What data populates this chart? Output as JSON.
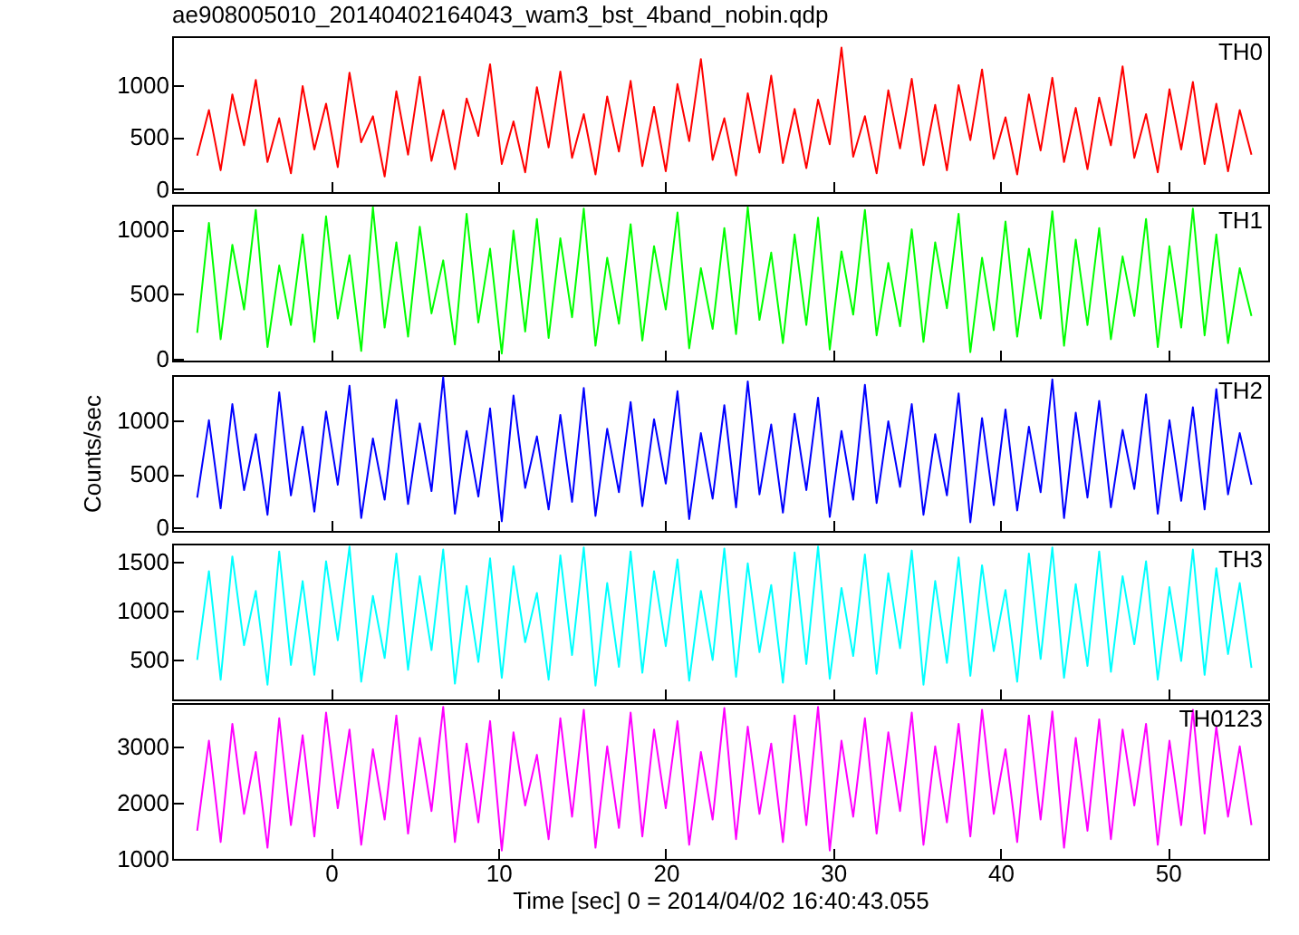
{
  "chart_data": [
    {
      "type": "line",
      "title": "ae908005010_20140402164043_wam3_bst_4band_nobin.qdp",
      "xlim": [
        -9.5,
        56
      ],
      "xticks": [
        0,
        10,
        20,
        30,
        40,
        50
      ],
      "ylim": [
        -30,
        1470
      ],
      "yticks": [
        0,
        500,
        1000
      ],
      "tick_labels": "y",
      "grid": false,
      "legend": false,
      "x": [
        -8,
        -7.3,
        -6.6,
        -5.9,
        -5.2,
        -4.5,
        -3.8,
        -3.1,
        -2.4,
        -1.7,
        -1,
        -0.3,
        0.4,
        1.1,
        1.8,
        2.5,
        3.2,
        3.9,
        4.6,
        5.3,
        6,
        6.7,
        7.4,
        8.1,
        8.8,
        9.5,
        10.2,
        10.9,
        11.6,
        12.3,
        13,
        13.7,
        14.4,
        15.1,
        15.8,
        16.5,
        17.2,
        17.9,
        18.6,
        19.3,
        20,
        20.7,
        21.4,
        22.1,
        22.8,
        23.5,
        24.2,
        24.9,
        25.6,
        26.3,
        27,
        27.7,
        28.4,
        29.1,
        29.8,
        30.5,
        31.2,
        31.9,
        32.6,
        33.3,
        34,
        34.7,
        35.4,
        36.1,
        36.8,
        37.5,
        38.2,
        38.9,
        39.6,
        40.3,
        41,
        41.7,
        42.4,
        43.1,
        43.8,
        44.5,
        45.2,
        45.9,
        46.6,
        47.3,
        48,
        48.7,
        49.4,
        50.1,
        50.8,
        51.5,
        52.2,
        52.9,
        53.6,
        54.3,
        55
      ],
      "series": [
        {
          "name": "TH0",
          "color": "#ff0000",
          "values": [
            320,
            760,
            180,
            910,
            420,
            1050,
            260,
            680,
            150,
            990,
            380,
            820,
            210,
            1120,
            450,
            700,
            120,
            940,
            330,
            1080,
            270,
            760,
            190,
            870,
            510,
            1200,
            240,
            650,
            160,
            980,
            400,
            1130,
            300,
            720,
            140,
            890,
            360,
            1040,
            220,
            790,
            170,
            1010,
            460,
            1250,
            280,
            680,
            130,
            920,
            350,
            1090,
            250,
            770,
            200,
            860,
            430,
            1360,
            310,
            700,
            150,
            950,
            390,
            1060,
            230,
            810,
            180,
            1000,
            470,
            1150,
            290,
            690,
            140,
            910,
            370,
            1070,
            260,
            780,
            190,
            880,
            420,
            1180,
            300,
            720,
            160,
            960,
            380,
            1030,
            240,
            820,
            170,
            760,
            330
          ]
        }
      ]
    },
    {
      "type": "line",
      "xlim": [
        -9.5,
        56
      ],
      "xticks": [
        0,
        10,
        20,
        30,
        40,
        50
      ],
      "ylim": [
        -15,
        1190
      ],
      "yticks": [
        0,
        500,
        1000
      ],
      "tick_labels": "y",
      "grid": false,
      "legend": false,
      "x": [
        -8,
        -7.3,
        -6.6,
        -5.9,
        -5.2,
        -4.5,
        -3.8,
        -3.1,
        -2.4,
        -1.7,
        -1,
        -0.3,
        0.4,
        1.1,
        1.8,
        2.5,
        3.2,
        3.9,
        4.6,
        5.3,
        6,
        6.7,
        7.4,
        8.1,
        8.8,
        9.5,
        10.2,
        10.9,
        11.6,
        12.3,
        13,
        13.7,
        14.4,
        15.1,
        15.8,
        16.5,
        17.2,
        17.9,
        18.6,
        19.3,
        20,
        20.7,
        21.4,
        22.1,
        22.8,
        23.5,
        24.2,
        24.9,
        25.6,
        26.3,
        27,
        27.7,
        28.4,
        29.1,
        29.8,
        30.5,
        31.2,
        31.9,
        32.6,
        33.3,
        34,
        34.7,
        35.4,
        36.1,
        36.8,
        37.5,
        38.2,
        38.9,
        39.6,
        40.3,
        41,
        41.7,
        42.4,
        43.1,
        43.8,
        44.5,
        45.2,
        45.9,
        46.6,
        47.3,
        48,
        48.7,
        49.4,
        50.1,
        50.8,
        51.5,
        52.2,
        52.9,
        53.6,
        54.3,
        55
      ],
      "series": [
        {
          "name": "TH1",
          "color": "#00ff00",
          "values": [
            200,
            1050,
            150,
            880,
            380,
            1150,
            90,
            720,
            260,
            960,
            130,
            1100,
            310,
            800,
            60,
            1170,
            240,
            900,
            170,
            1020,
            350,
            760,
            110,
            1120,
            280,
            850,
            40,
            990,
            210,
            1080,
            160,
            930,
            320,
            1160,
            100,
            780,
            270,
            1040,
            140,
            870,
            380,
            1130,
            80,
            700,
            230,
            1010,
            190,
            1170,
            300,
            820,
            120,
            960,
            260,
            1090,
            70,
            830,
            340,
            1150,
            180,
            740,
            250,
            1000,
            130,
            900,
            390,
            1120,
            50,
            780,
            220,
            1060,
            170,
            850,
            310,
            1140,
            100,
            920,
            260,
            1010,
            150,
            790,
            330,
            1080,
            90,
            870,
            240,
            1160,
            180,
            960,
            120,
            700,
            330
          ]
        }
      ]
    },
    {
      "type": "line",
      "ylabel": "Counts/sec",
      "xlim": [
        -9.5,
        56
      ],
      "xticks": [
        0,
        10,
        20,
        30,
        40,
        50
      ],
      "ylim": [
        -30,
        1420
      ],
      "yticks": [
        0,
        500,
        1000
      ],
      "tick_labels": "y",
      "grid": false,
      "legend": false,
      "x": [
        -8,
        -7.3,
        -6.6,
        -5.9,
        -5.2,
        -4.5,
        -3.8,
        -3.1,
        -2.4,
        -1.7,
        -1,
        -0.3,
        0.4,
        1.1,
        1.8,
        2.5,
        3.2,
        3.9,
        4.6,
        5.3,
        6,
        6.7,
        7.4,
        8.1,
        8.8,
        9.5,
        10.2,
        10.9,
        11.6,
        12.3,
        13,
        13.7,
        14.4,
        15.1,
        15.8,
        16.5,
        17.2,
        17.9,
        18.6,
        19.3,
        20,
        20.7,
        21.4,
        22.1,
        22.8,
        23.5,
        24.2,
        24.9,
        25.6,
        26.3,
        27,
        27.7,
        28.4,
        29.1,
        29.8,
        30.5,
        31.2,
        31.9,
        32.6,
        33.3,
        34,
        34.7,
        35.4,
        36.1,
        36.8,
        37.5,
        38.2,
        38.9,
        39.6,
        40.3,
        41,
        41.7,
        42.4,
        43.1,
        43.8,
        44.5,
        45.2,
        45.9,
        46.6,
        47.3,
        48,
        48.7,
        49.4,
        50.1,
        50.8,
        51.5,
        52.2,
        52.9,
        53.6,
        54.3,
        55
      ],
      "series": [
        {
          "name": "TH2",
          "color": "#0000ff",
          "values": [
            280,
            1000,
            180,
            1150,
            350,
            870,
            120,
            1260,
            300,
            940,
            150,
            1080,
            400,
            1320,
            90,
            830,
            260,
            1190,
            220,
            970,
            340,
            1400,
            130,
            900,
            290,
            1110,
            60,
            1230,
            370,
            850,
            170,
            1050,
            240,
            1300,
            110,
            920,
            330,
            1170,
            200,
            1010,
            410,
            1270,
            80,
            880,
            270,
            1140,
            190,
            1360,
            310,
            960,
            140,
            1060,
            350,
            1210,
            100,
            900,
            260,
            1330,
            230,
            990,
            380,
            1150,
            120,
            870,
            300,
            1250,
            50,
            1020,
            210,
            1100,
            160,
            940,
            330,
            1380,
            90,
            1070,
            280,
            1180,
            190,
            910,
            360,
            1240,
            130,
            1000,
            250,
            1120,
            170,
            1290,
            310,
            880,
            400
          ]
        }
      ]
    },
    {
      "type": "line",
      "xlim": [
        -9.5,
        56
      ],
      "xticks": [
        0,
        10,
        20,
        30,
        40,
        50
      ],
      "ylim": [
        100,
        1680
      ],
      "yticks": [
        500,
        1000,
        1500
      ],
      "tick_labels": "y",
      "grid": false,
      "legend": false,
      "x": [
        -8,
        -7.3,
        -6.6,
        -5.9,
        -5.2,
        -4.5,
        -3.8,
        -3.1,
        -2.4,
        -1.7,
        -1,
        -0.3,
        0.4,
        1.1,
        1.8,
        2.5,
        3.2,
        3.9,
        4.6,
        5.3,
        6,
        6.7,
        7.4,
        8.1,
        8.8,
        9.5,
        10.2,
        10.9,
        11.6,
        12.3,
        13,
        13.7,
        14.4,
        15.1,
        15.8,
        16.5,
        17.2,
        17.9,
        18.6,
        19.3,
        20,
        20.7,
        21.4,
        22.1,
        22.8,
        23.5,
        24.2,
        24.9,
        25.6,
        26.3,
        27,
        27.7,
        28.4,
        29.1,
        29.8,
        30.5,
        31.2,
        31.9,
        32.6,
        33.3,
        34,
        34.7,
        35.4,
        36.1,
        36.8,
        37.5,
        38.2,
        38.9,
        39.6,
        40.3,
        41,
        41.7,
        42.4,
        43.1,
        43.8,
        44.5,
        45.2,
        45.9,
        46.6,
        47.3,
        48,
        48.7,
        49.4,
        50.1,
        50.8,
        51.5,
        52.2,
        52.9,
        53.6,
        54.3,
        55
      ],
      "series": [
        {
          "name": "TH3",
          "color": "#00ffff",
          "values": [
            500,
            1400,
            300,
            1550,
            650,
            1200,
            250,
            1600,
            450,
            1300,
            350,
            1500,
            700,
            1650,
            280,
            1150,
            520,
            1580,
            400,
            1350,
            600,
            1620,
            260,
            1250,
            480,
            1530,
            320,
            1450,
            680,
            1180,
            300,
            1560,
            550,
            1640,
            240,
            1280,
            430,
            1600,
            370,
            1400,
            640,
            1520,
            290,
            1200,
            500,
            1630,
            330,
            1480,
            580,
            1260,
            270,
            1590,
            460,
            1650,
            310,
            1230,
            540,
            1570,
            360,
            1380,
            620,
            1610,
            250,
            1300,
            470,
            1540,
            340,
            1460,
            590,
            1210,
            280,
            1580,
            510,
            1640,
            320,
            1270,
            440,
            1600,
            380,
            1350,
            660,
            1500,
            300,
            1240,
            490,
            1620,
            350,
            1430,
            560,
            1280,
            420
          ]
        }
      ]
    },
    {
      "type": "line",
      "xlabel": "Time [sec] 0 = 2014/04/02 16:40:43.055",
      "xlim": [
        -9.5,
        56
      ],
      "xticks": [
        0,
        10,
        20,
        30,
        40,
        50
      ],
      "ylim": [
        1000,
        3770
      ],
      "yticks": [
        1000,
        2000,
        3000
      ],
      "grid": false,
      "legend": false,
      "x": [
        -8,
        -7.3,
        -6.6,
        -5.9,
        -5.2,
        -4.5,
        -3.8,
        -3.1,
        -2.4,
        -1.7,
        -1,
        -0.3,
        0.4,
        1.1,
        1.8,
        2.5,
        3.2,
        3.9,
        4.6,
        5.3,
        6,
        6.7,
        7.4,
        8.1,
        8.8,
        9.5,
        10.2,
        10.9,
        11.6,
        12.3,
        13,
        13.7,
        14.4,
        15.1,
        15.8,
        16.5,
        17.2,
        17.9,
        18.6,
        19.3,
        20,
        20.7,
        21.4,
        22.1,
        22.8,
        23.5,
        24.2,
        24.9,
        25.6,
        26.3,
        27,
        27.7,
        28.4,
        29.1,
        29.8,
        30.5,
        31.2,
        31.9,
        32.6,
        33.3,
        34,
        34.7,
        35.4,
        36.1,
        36.8,
        37.5,
        38.2,
        38.9,
        39.6,
        40.3,
        41,
        41.7,
        42.4,
        43.1,
        43.8,
        44.5,
        45.2,
        45.9,
        46.6,
        47.3,
        48,
        48.7,
        49.4,
        50.1,
        50.8,
        51.5,
        52.2,
        52.9,
        53.6,
        54.3,
        55
      ],
      "series": [
        {
          "name": "TH0123",
          "color": "#ff00ff",
          "values": [
            1500,
            3100,
            1300,
            3400,
            1800,
            2900,
            1200,
            3500,
            1600,
            3200,
            1400,
            3600,
            1900,
            3300,
            1250,
            2950,
            1700,
            3550,
            1450,
            3150,
            1850,
            3700,
            1300,
            3050,
            1650,
            3450,
            1150,
            3250,
            1950,
            2850,
            1350,
            3500,
            1750,
            3650,
            1200,
            3000,
            1550,
            3600,
            1400,
            3300,
            1900,
            3450,
            1250,
            2900,
            1700,
            3680,
            1350,
            3350,
            1800,
            3050,
            1300,
            3550,
            1600,
            3700,
            1150,
            3100,
            1750,
            3500,
            1450,
            3250,
            1850,
            3600,
            1250,
            3000,
            1650,
            3400,
            1400,
            3650,
            1800,
            2950,
            1300,
            3550,
            1700,
            3620,
            1200,
            3150,
            1500,
            3480,
            1350,
            3300,
            1950,
            3400,
            1250,
            3100,
            1600,
            3650,
            1450,
            3350,
            1750,
            3000,
            1600
          ]
        }
      ]
    }
  ]
}
